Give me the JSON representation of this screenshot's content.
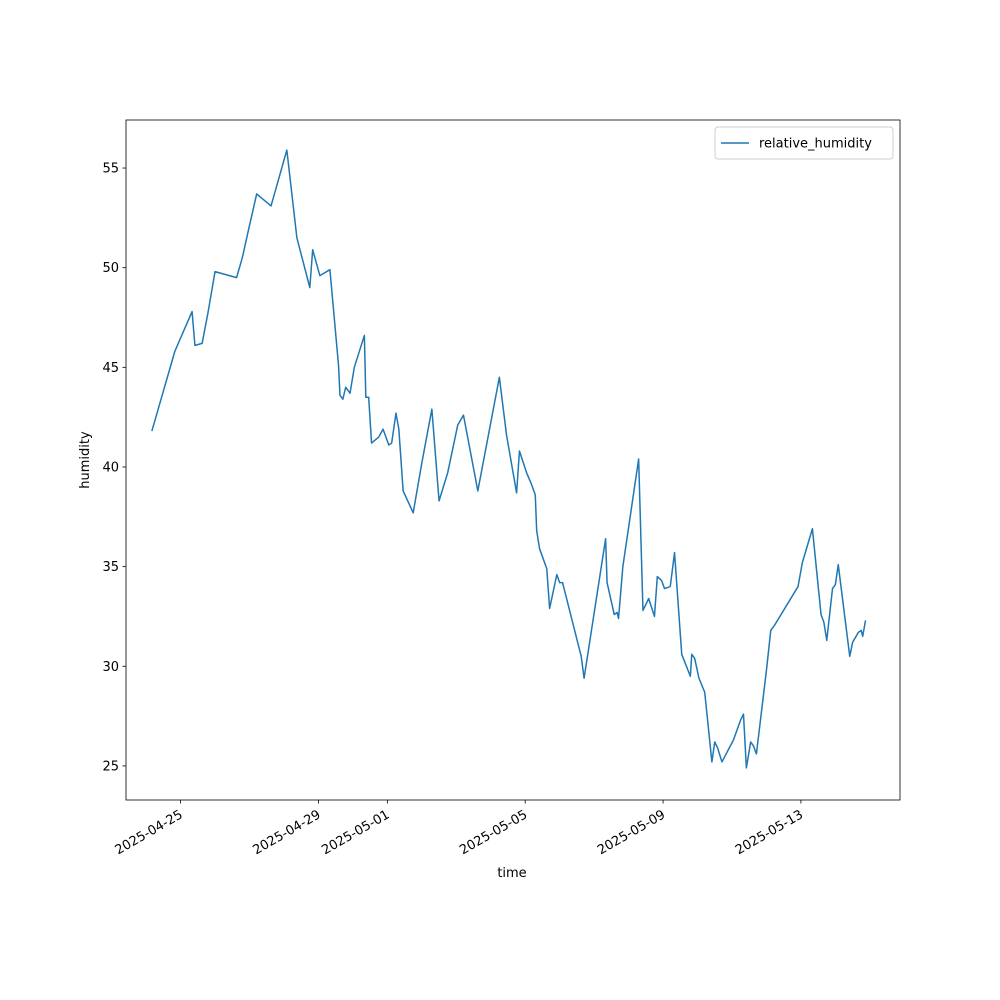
{
  "chart_data": {
    "type": "line",
    "x_label": "time",
    "y_label": "humidity",
    "x": [
      "2025-04-24T04:00",
      "2025-04-24T20:00",
      "2025-04-25T08:00",
      "2025-04-25T10:00",
      "2025-04-25T15:00",
      "2025-04-25T19:00",
      "2025-04-26T00:00",
      "2025-04-26T15:00",
      "2025-04-26T19:00",
      "2025-04-26T23:00",
      "2025-04-27T05:00",
      "2025-04-27T15:00",
      "2025-04-28T02:00",
      "2025-04-28T09:00",
      "2025-04-28T18:00",
      "2025-04-28T20:00",
      "2025-04-29T01:00",
      "2025-04-29T08:00",
      "2025-04-29T14:00",
      "2025-04-29T15:00",
      "2025-04-29T17:00",
      "2025-04-29T19:00",
      "2025-04-29T22:00",
      "2025-04-30T01:00",
      "2025-04-30T08:00",
      "2025-04-30T09:00",
      "2025-04-30T11:00",
      "2025-04-30T13:00",
      "2025-04-30T18:00",
      "2025-04-30T21:00",
      "2025-05-01T01:00",
      "2025-05-01T03:00",
      "2025-05-01T06:00",
      "2025-05-01T08:00",
      "2025-05-01T11:00",
      "2025-05-01T18:00",
      "2025-05-02T00:00",
      "2025-05-02T07:00",
      "2025-05-02T12:00",
      "2025-05-02T18:00",
      "2025-05-03T01:00",
      "2025-05-03T05:00",
      "2025-05-03T15:00",
      "2025-05-04T06:00",
      "2025-05-04T11:00",
      "2025-05-04T18:00",
      "2025-05-04T20:00",
      "2025-05-05T01:00",
      "2025-05-05T04:00",
      "2025-05-05T07:00",
      "2025-05-05T08:00",
      "2025-05-05T10:00",
      "2025-05-05T15:00",
      "2025-05-05T17:00",
      "2025-05-05T22:00",
      "2025-05-06T00:00",
      "2025-05-06T02:00",
      "2025-05-06T15:00",
      "2025-05-06T17:00",
      "2025-05-07T08:00",
      "2025-05-07T09:00",
      "2025-05-07T14:00",
      "2025-05-07T16:00",
      "2025-05-07T17:00",
      "2025-05-07T20:00",
      "2025-05-08T07:00",
      "2025-05-08T10:00",
      "2025-05-08T14:00",
      "2025-05-08T18:00",
      "2025-05-08T20:00",
      "2025-05-08T23:00",
      "2025-05-09T01:00",
      "2025-05-09T05:00",
      "2025-05-09T08:00",
      "2025-05-09T13:00",
      "2025-05-09T19:00",
      "2025-05-09T20:00",
      "2025-05-09T22:00",
      "2025-05-10T01:00",
      "2025-05-10T05:00",
      "2025-05-10T10:00",
      "2025-05-10T12:00",
      "2025-05-10T14:00",
      "2025-05-10T17:00",
      "2025-05-11T01:00",
      "2025-05-11T06:00",
      "2025-05-11T08:00",
      "2025-05-11T10:00",
      "2025-05-11T13:00",
      "2025-05-11T15:00",
      "2025-05-11T17:00",
      "2025-05-12T00:00",
      "2025-05-12T03:00",
      "2025-05-12T06:00",
      "2025-05-12T22:00",
      "2025-05-13T01:00",
      "2025-05-13T08:00",
      "2025-05-13T14:00",
      "2025-05-13T16:00",
      "2025-05-13T18:00",
      "2025-05-13T22:00",
      "2025-05-14T00:00",
      "2025-05-14T02:00",
      "2025-05-14T10:00",
      "2025-05-14T12:00",
      "2025-05-14T16:00",
      "2025-05-14T18:00",
      "2025-05-14T19:00",
      "2025-05-14T21:00"
    ],
    "series": [
      {
        "name": "relative_humidity",
        "color": "#1f77b4",
        "values": [
          41.8,
          45.8,
          47.8,
          46.1,
          46.2,
          47.7,
          49.8,
          49.5,
          50.5,
          51.8,
          53.7,
          53.1,
          55.9,
          51.5,
          49.0,
          50.9,
          49.6,
          49.9,
          45.1,
          43.6,
          43.4,
          44.0,
          43.7,
          45.0,
          46.6,
          43.5,
          43.5,
          41.2,
          41.5,
          41.9,
          41.1,
          41.2,
          42.7,
          41.9,
          38.8,
          37.7,
          40.2,
          42.9,
          38.3,
          39.7,
          42.1,
          42.6,
          38.8,
          44.5,
          41.6,
          38.7,
          40.8,
          39.7,
          39.2,
          38.6,
          36.8,
          35.9,
          34.9,
          32.9,
          34.6,
          34.2,
          34.2,
          30.5,
          29.4,
          36.4,
          34.2,
          32.6,
          32.7,
          32.4,
          35.0,
          40.4,
          32.8,
          33.4,
          32.5,
          34.5,
          34.3,
          33.9,
          34.0,
          35.7,
          30.6,
          29.5,
          30.6,
          30.4,
          29.4,
          28.7,
          25.2,
          26.2,
          25.9,
          25.2,
          26.3,
          27.3,
          27.6,
          24.9,
          26.2,
          26.0,
          25.6,
          29.8,
          31.8,
          32.1,
          34.0,
          35.2,
          36.9,
          32.6,
          32.2,
          31.3,
          33.9,
          34.1,
          35.1,
          30.5,
          31.2,
          31.7,
          31.8,
          31.5,
          32.3
        ]
      }
    ],
    "xlim": [
      "2025-04-23T10:00",
      "2025-05-15T21:00"
    ],
    "xticks": [
      "2025-04-25",
      "2025-04-29",
      "2025-05-01",
      "2025-05-05",
      "2025-05-09",
      "2025-05-13"
    ],
    "ylim": [
      23.29,
      57.41
    ],
    "yticks": [
      25,
      30,
      35,
      40,
      45,
      50,
      55
    ],
    "legend": "upper right",
    "grid": false
  }
}
